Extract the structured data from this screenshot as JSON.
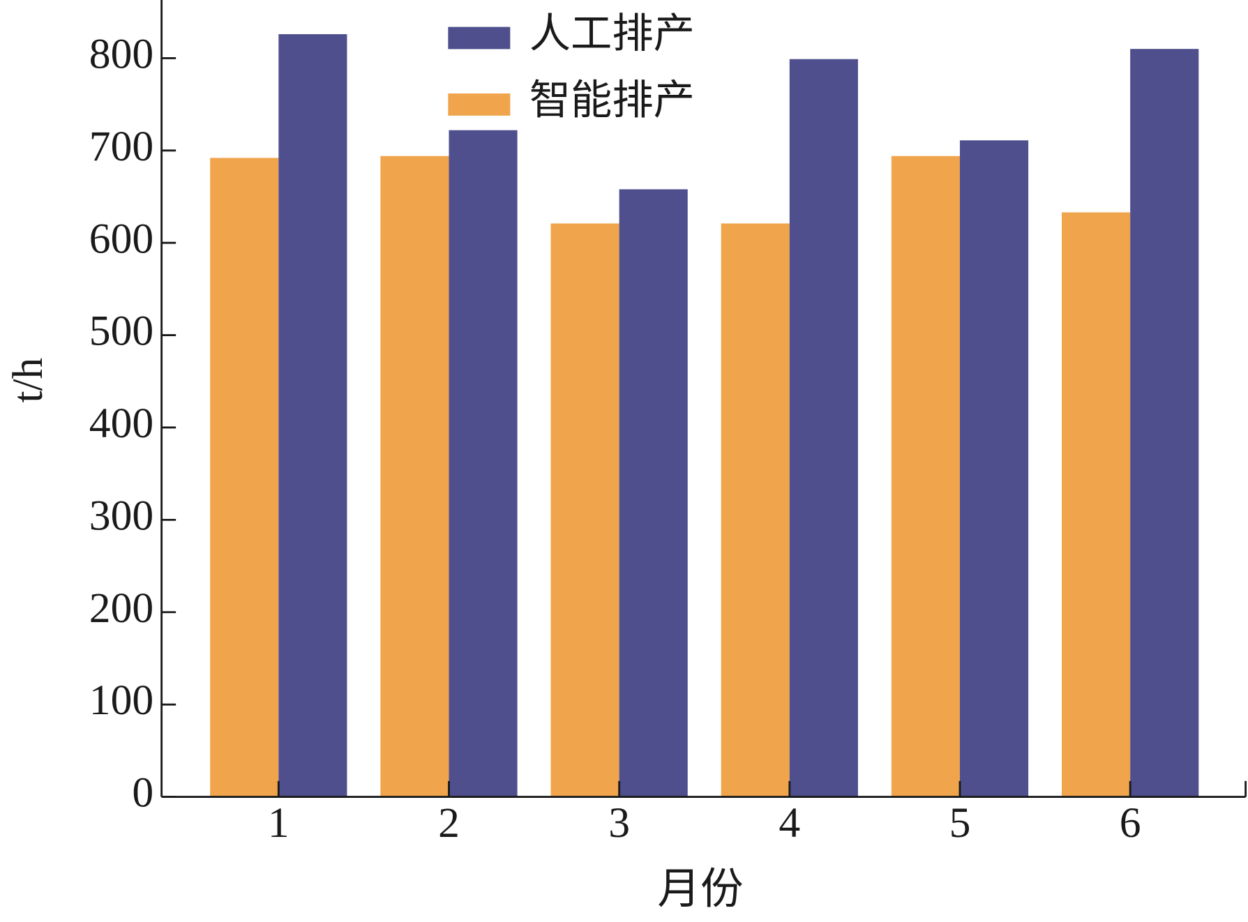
{
  "chart_data": {
    "type": "bar",
    "x_label": "月份",
    "y_label": "t/h",
    "categories": [
      "1",
      "2",
      "3",
      "4",
      "5",
      "6"
    ],
    "series": [
      {
        "name": "智能排产",
        "color": "#f0a44b",
        "values": [
          692,
          694,
          621,
          621,
          694,
          633
        ]
      },
      {
        "name": "人工排产",
        "color": "#4f4f8e",
        "values": [
          826,
          722,
          658,
          799,
          711,
          810
        ]
      }
    ],
    "ylim": [
      0,
      863
    ],
    "yticks": [
      0,
      100,
      200,
      300,
      400,
      500,
      600,
      700,
      800
    ],
    "grid": false
  }
}
